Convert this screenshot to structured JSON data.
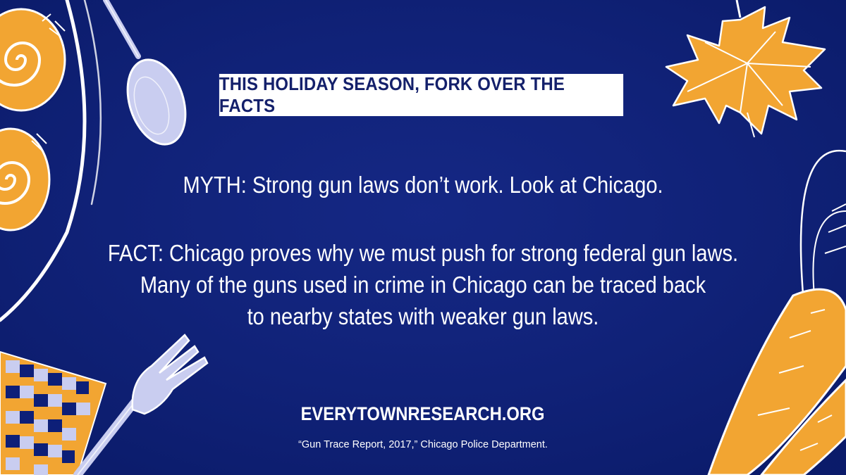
{
  "banner": {
    "text": "THIS HOLIDAY SEASON, FORK OVER THE FACTS"
  },
  "myth": {
    "text": "MYTH: Strong gun laws don’t work. Look at Chicago."
  },
  "fact": {
    "lines": [
      "FACT: Chicago proves why we must push for strong federal gun laws.",
      "Many of the guns used in crime in Chicago can be traced back",
      "to nearby states with weaker gun laws."
    ]
  },
  "website": {
    "text": "EVERYTOWNRESEARCH.ORG"
  },
  "source": {
    "text": "“Gun Trace Report, 2017,” Chicago Police Department."
  },
  "colors": {
    "background": "#0d1f78",
    "accent_orange": "#f2a532",
    "utensil": "#c9cdf0",
    "banner_text": "#14206b"
  },
  "icons": [
    "plate-icon",
    "cinnamon-roll-icon",
    "spoon-icon",
    "maple-leaf-icon",
    "carrot-icon",
    "fork-icon",
    "waffle-icon"
  ]
}
